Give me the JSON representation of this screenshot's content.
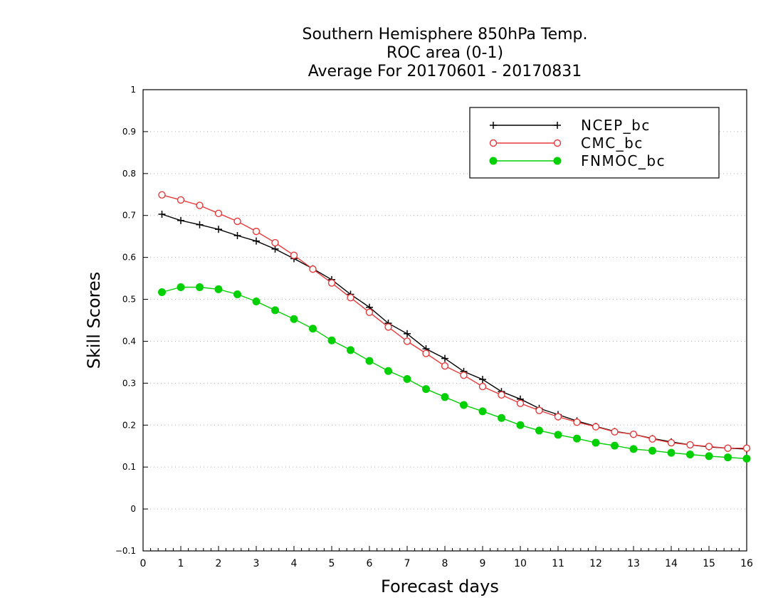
{
  "chart_data": {
    "type": "line",
    "title": [
      "Southern Hemisphere 850hPa Temp.",
      "ROC area (0-1)",
      "Average For 20170601 - 20170831"
    ],
    "xlabel": "Forecast days",
    "ylabel": "Skill Scores",
    "xlim": [
      0,
      16
    ],
    "ylim": [
      -0.1,
      1
    ],
    "xticks": [
      "0",
      "1",
      "2",
      "3",
      "4",
      "5",
      "6",
      "7",
      "8",
      "9",
      "10",
      "11",
      "12",
      "13",
      "14",
      "15",
      "16"
    ],
    "yticks": [
      "−0.1",
      "0",
      "0.1",
      "0.2",
      "0.3",
      "0.4",
      "0.5",
      "0.6",
      "0.7",
      "0.8",
      "0.9",
      "1"
    ],
    "grid": true,
    "legend_position": "top-right",
    "x": [
      0.5,
      1,
      1.5,
      2,
      2.5,
      3,
      3.5,
      4,
      4.5,
      5,
      5.5,
      6,
      6.5,
      7,
      7.5,
      8,
      8.5,
      9,
      9.5,
      10,
      10.5,
      11,
      11.5,
      12,
      12.5,
      13,
      13.5,
      14,
      14.5,
      15,
      15.5,
      16
    ],
    "series": [
      {
        "name": "NCEP_bc",
        "color": "#000000",
        "marker": "plus",
        "values": [
          0.703,
          0.688,
          0.678,
          0.667,
          0.652,
          0.639,
          0.62,
          0.597,
          0.573,
          0.547,
          0.512,
          0.481,
          0.443,
          0.418,
          0.382,
          0.359,
          0.328,
          0.309,
          0.28,
          0.262,
          0.24,
          0.225,
          0.21,
          0.197,
          0.185,
          0.178,
          0.168,
          0.16,
          0.153,
          0.148,
          0.145,
          0.143
        ]
      },
      {
        "name": "CMC_bc",
        "color": "#e8393a",
        "marker": "open-circle",
        "values": [
          0.749,
          0.737,
          0.724,
          0.705,
          0.686,
          0.662,
          0.635,
          0.605,
          0.572,
          0.539,
          0.504,
          0.469,
          0.434,
          0.4,
          0.371,
          0.341,
          0.319,
          0.292,
          0.272,
          0.252,
          0.235,
          0.22,
          0.207,
          0.196,
          0.184,
          0.178,
          0.167,
          0.158,
          0.153,
          0.149,
          0.145,
          0.145
        ]
      },
      {
        "name": "FNMOC_bc",
        "color": "#00d000",
        "marker": "filled-circle",
        "values": [
          0.517,
          0.529,
          0.529,
          0.524,
          0.512,
          0.495,
          0.474,
          0.453,
          0.43,
          0.402,
          0.379,
          0.353,
          0.329,
          0.31,
          0.286,
          0.267,
          0.248,
          0.233,
          0.217,
          0.2,
          0.187,
          0.177,
          0.168,
          0.158,
          0.151,
          0.143,
          0.139,
          0.134,
          0.13,
          0.126,
          0.123,
          0.12
        ]
      }
    ]
  }
}
